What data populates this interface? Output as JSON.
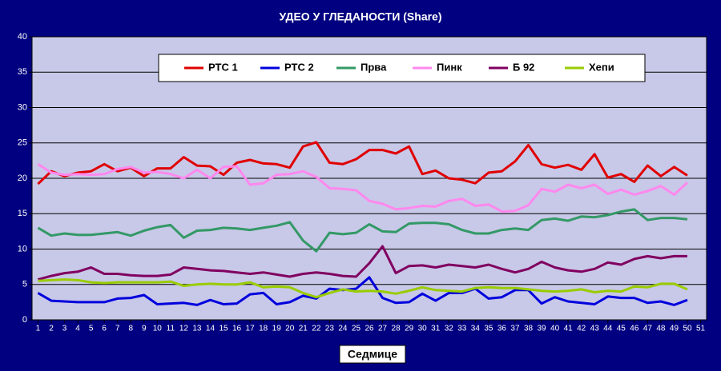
{
  "chart_data": {
    "type": "line",
    "title": "УДЕО У ГЛЕДАНОСТИ (Share)",
    "x_label": "Седмице",
    "x": [
      1,
      2,
      3,
      4,
      5,
      6,
      7,
      8,
      9,
      10,
      11,
      12,
      13,
      14,
      15,
      16,
      17,
      18,
      19,
      20,
      21,
      22,
      23,
      24,
      25,
      26,
      27,
      28,
      29,
      30,
      31,
      32,
      33,
      34,
      35,
      36,
      37,
      38,
      39,
      40,
      41,
      42,
      43,
      44,
      45,
      46,
      47,
      48,
      49,
      50
    ],
    "xlim": [
      0.55,
      51.45
    ],
    "xticks": [
      1,
      2,
      3,
      4,
      5,
      6,
      7,
      8,
      9,
      10,
      11,
      12,
      13,
      14,
      15,
      16,
      17,
      18,
      19,
      20,
      21,
      22,
      23,
      24,
      25,
      26,
      27,
      28,
      29,
      30,
      31,
      32,
      33,
      34,
      35,
      36,
      37,
      38,
      39,
      40,
      41,
      42,
      43,
      44,
      45,
      46,
      47,
      48,
      49,
      50,
      51
    ],
    "ylim": [
      0,
      40
    ],
    "yticks": [
      0,
      5,
      10,
      15,
      20,
      25,
      30,
      35,
      40
    ],
    "grid": true,
    "legend": "top",
    "series": [
      {
        "name": "РТС 1",
        "color": "#e00000",
        "values": [
          19.2,
          21.0,
          20.3,
          20.8,
          21.0,
          22.0,
          21.0,
          21.5,
          20.3,
          21.4,
          21.4,
          23.0,
          21.8,
          21.7,
          20.5,
          22.2,
          22.6,
          22.1,
          22.0,
          21.5,
          24.5,
          25.1,
          22.2,
          22.0,
          22.7,
          24.0,
          24.0,
          23.5,
          24.5,
          20.6,
          21.1,
          20.0,
          19.8,
          19.3,
          20.8,
          21.0,
          22.4,
          24.7,
          22.0,
          21.5,
          21.9,
          21.2,
          23.4,
          20.1,
          20.6,
          19.5,
          21.8,
          20.3,
          21.6,
          20.4
        ]
      },
      {
        "name": "РТС 2",
        "color": "#0000dd",
        "values": [
          3.8,
          2.7,
          2.6,
          2.5,
          2.5,
          2.5,
          3.0,
          3.1,
          3.5,
          2.2,
          2.3,
          2.4,
          2.1,
          2.8,
          2.2,
          2.3,
          3.6,
          3.8,
          2.2,
          2.5,
          3.4,
          3.0,
          4.4,
          4.2,
          4.4,
          6.0,
          3.1,
          2.4,
          2.5,
          3.7,
          2.7,
          3.8,
          3.8,
          4.4,
          3.0,
          3.2,
          4.2,
          4.2,
          2.3,
          3.2,
          2.6,
          2.4,
          2.2,
          3.3,
          3.1,
          3.1,
          2.4,
          2.6,
          2.1,
          2.8
        ]
      },
      {
        "name": "Прва",
        "color": "#339966",
        "values": [
          13.0,
          11.9,
          12.2,
          12.0,
          12.0,
          12.2,
          12.4,
          11.9,
          12.6,
          13.1,
          13.4,
          11.6,
          12.6,
          12.7,
          13.0,
          12.9,
          12.7,
          13.0,
          13.3,
          13.8,
          11.2,
          9.7,
          12.3,
          12.1,
          12.3,
          13.5,
          12.5,
          12.4,
          13.6,
          13.7,
          13.7,
          13.5,
          12.7,
          12.2,
          12.2,
          12.7,
          12.9,
          12.7,
          14.1,
          14.3,
          14.0,
          14.6,
          14.5,
          14.8,
          15.3,
          15.6,
          14.1,
          14.4,
          14.4,
          14.2
        ]
      },
      {
        "name": "Пинк",
        "color": "#ff88ee",
        "values": [
          22.0,
          20.8,
          20.5,
          20.6,
          20.5,
          20.6,
          21.3,
          21.6,
          20.8,
          20.9,
          20.6,
          20.0,
          21.2,
          20.0,
          21.6,
          21.7,
          19.1,
          19.3,
          20.5,
          20.6,
          21.0,
          20.2,
          18.6,
          18.5,
          18.3,
          16.8,
          16.4,
          15.6,
          15.8,
          16.1,
          16.0,
          16.8,
          17.1,
          16.1,
          16.3,
          15.3,
          15.4,
          16.2,
          18.5,
          18.1,
          19.1,
          18.6,
          19.1,
          17.8,
          18.4,
          17.7,
          18.2,
          18.9,
          17.7,
          19.4
        ]
      },
      {
        "name": "Б 92",
        "color": "#800060",
        "values": [
          5.7,
          6.2,
          6.6,
          6.8,
          7.4,
          6.5,
          6.5,
          6.3,
          6.2,
          6.2,
          6.4,
          7.4,
          7.2,
          7.0,
          6.9,
          6.7,
          6.5,
          6.7,
          6.4,
          6.1,
          6.5,
          6.7,
          6.5,
          6.2,
          6.1,
          8.0,
          10.4,
          6.6,
          7.6,
          7.7,
          7.4,
          7.8,
          7.6,
          7.4,
          7.8,
          7.2,
          6.7,
          7.2,
          8.2,
          7.4,
          7.0,
          6.8,
          7.2,
          8.1,
          7.8,
          8.6,
          9.0,
          8.7,
          9.0,
          9.0
        ]
      },
      {
        "name": "Хепи",
        "color": "#99cc00",
        "values": [
          5.5,
          5.6,
          5.7,
          5.6,
          5.3,
          5.2,
          5.3,
          5.3,
          5.3,
          5.3,
          5.4,
          4.8,
          5.0,
          5.1,
          5.0,
          5.0,
          5.3,
          4.6,
          4.7,
          4.6,
          3.8,
          3.2,
          3.8,
          4.3,
          4.0,
          4.1,
          4.0,
          3.7,
          4.1,
          4.6,
          4.2,
          4.1,
          4.0,
          4.5,
          4.6,
          4.5,
          4.5,
          4.3,
          4.1,
          4.0,
          4.1,
          4.3,
          3.9,
          4.1,
          4.0,
          4.7,
          4.6,
          5.1,
          5.1,
          4.3
        ]
      }
    ]
  }
}
